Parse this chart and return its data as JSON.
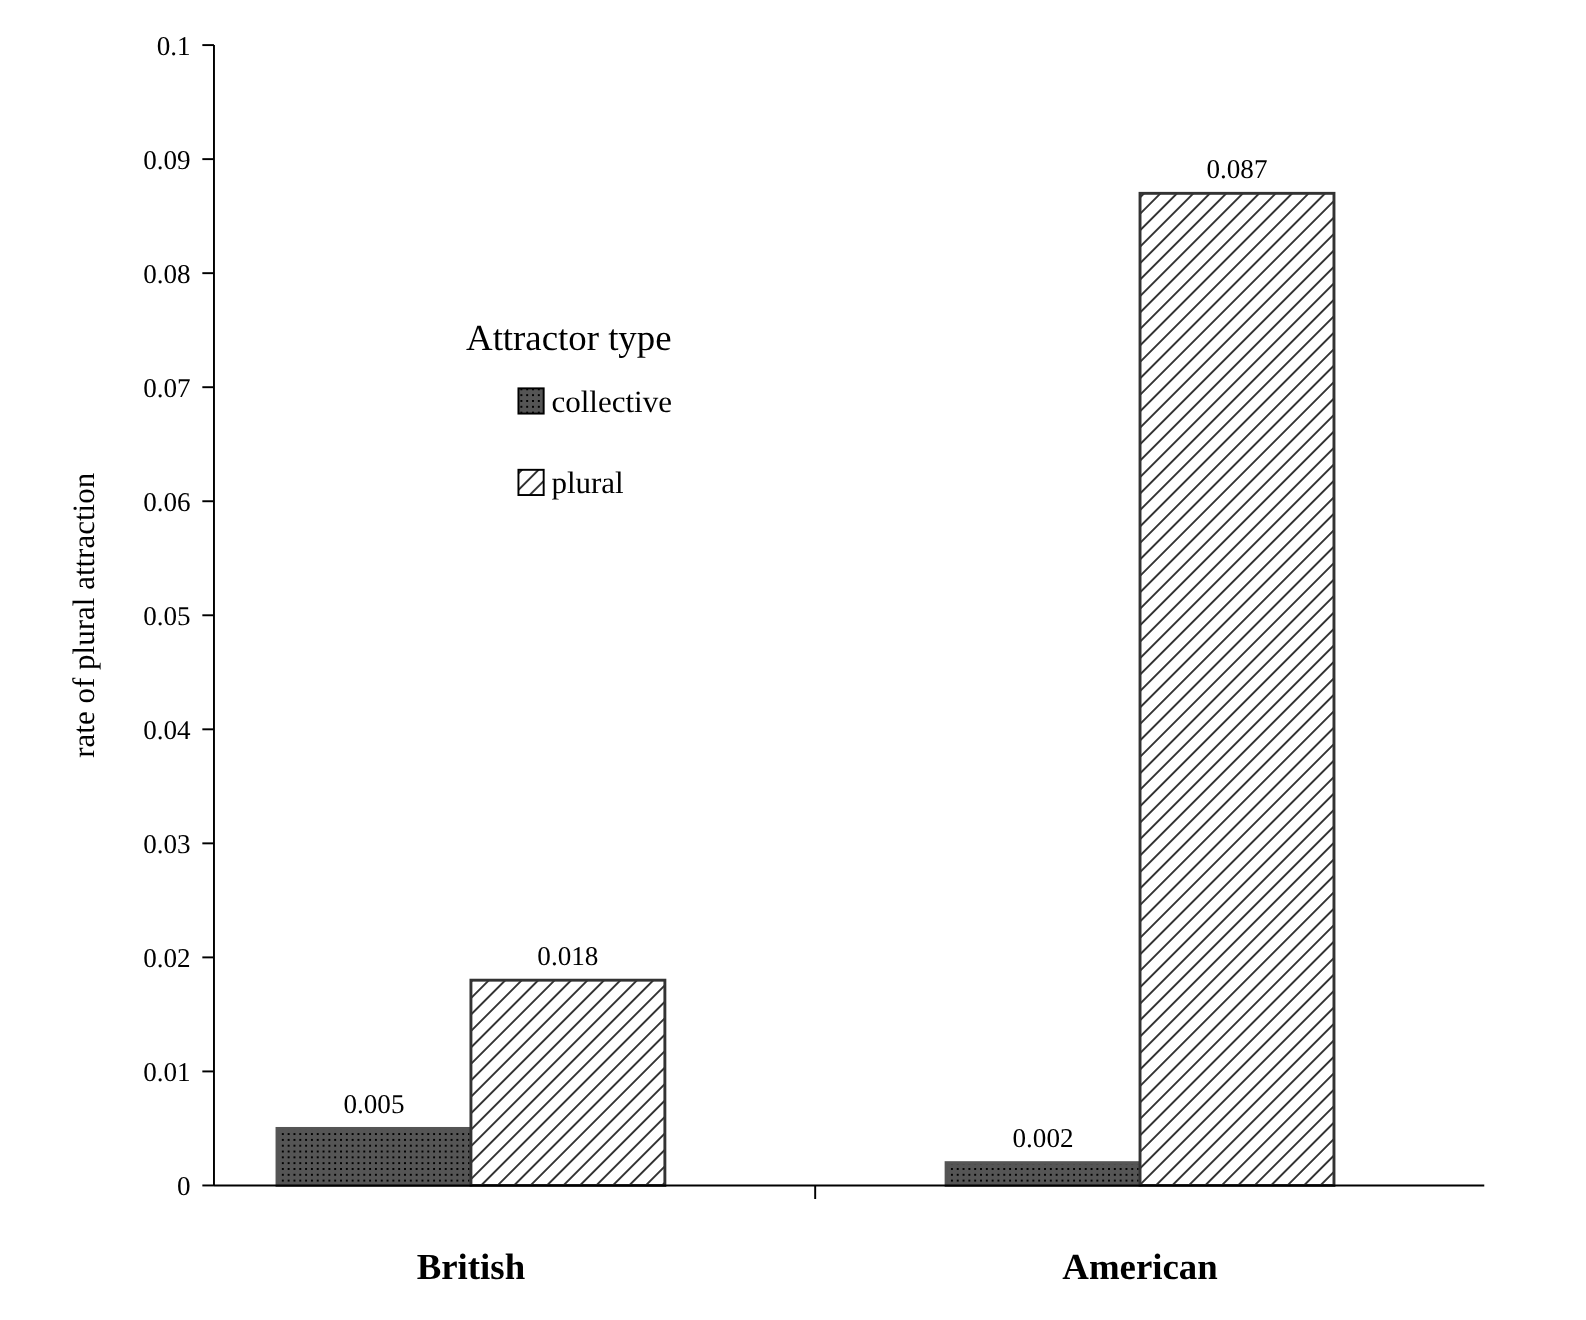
{
  "chart_data": {
    "type": "bar",
    "ylabel": "rate of plural attraction",
    "legend_title": "Attractor type",
    "categories": [
      "British",
      "American"
    ],
    "series": [
      {
        "name": "collective",
        "color": "#555555",
        "values": [
          0.005,
          0.002
        ]
      },
      {
        "name": "plural",
        "color": "#333333",
        "values": [
          0.018,
          0.087
        ]
      }
    ],
    "ylim": [
      0,
      0.1
    ],
    "yticks": [
      0,
      0.01,
      0.02,
      0.03,
      0.04,
      0.05,
      0.06,
      0.07,
      0.08,
      0.09,
      0.1
    ],
    "data_labels": true,
    "legend": "top left",
    "grid": false
  }
}
